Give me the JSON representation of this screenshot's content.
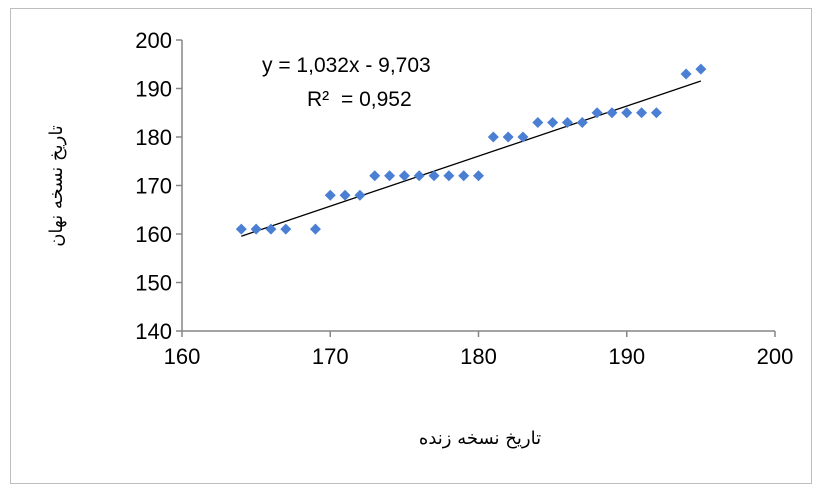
{
  "chart_data": {
    "type": "scatter",
    "title": "",
    "xlabel": "تاریخ نسخه زنده",
    "ylabel": "تاریخ نسخه نهان",
    "xlim": [
      160,
      200
    ],
    "ylim": [
      140,
      200
    ],
    "x_ticks": [
      "160",
      "170",
      "180",
      "190",
      "200"
    ],
    "y_ticks": [
      "140",
      "150",
      "160",
      "170",
      "180",
      "190",
      "200"
    ],
    "grid": false,
    "legend": "none",
    "marker_color": "#4a7fd4",
    "trendline_color": "#000000",
    "series": [
      {
        "marker": "diamond",
        "points": [
          [
            164,
            161
          ],
          [
            165,
            161
          ],
          [
            166,
            161
          ],
          [
            167,
            161
          ],
          [
            169,
            161
          ],
          [
            170,
            168
          ],
          [
            171,
            168
          ],
          [
            172,
            168
          ],
          [
            173,
            172
          ],
          [
            174,
            172
          ],
          [
            175,
            172
          ],
          [
            176,
            172
          ],
          [
            177,
            172
          ],
          [
            178,
            172
          ],
          [
            179,
            172
          ],
          [
            180,
            172
          ],
          [
            181,
            180
          ],
          [
            182,
            180
          ],
          [
            183,
            180
          ],
          [
            184,
            183
          ],
          [
            185,
            183
          ],
          [
            186,
            183
          ],
          [
            187,
            183
          ],
          [
            188,
            185
          ],
          [
            189,
            185
          ],
          [
            190,
            185
          ],
          [
            191,
            185
          ],
          [
            192,
            185
          ],
          [
            194,
            193
          ],
          [
            195,
            194
          ]
        ]
      }
    ],
    "trendline": {
      "slope": 1.032,
      "intercept": -9.703,
      "x_range": [
        164,
        195
      ]
    },
    "annotations": {
      "equation": "y = 1,032x - 9,703",
      "r_squared_label": "R²",
      "r_squared_value": "= 0,952"
    }
  }
}
